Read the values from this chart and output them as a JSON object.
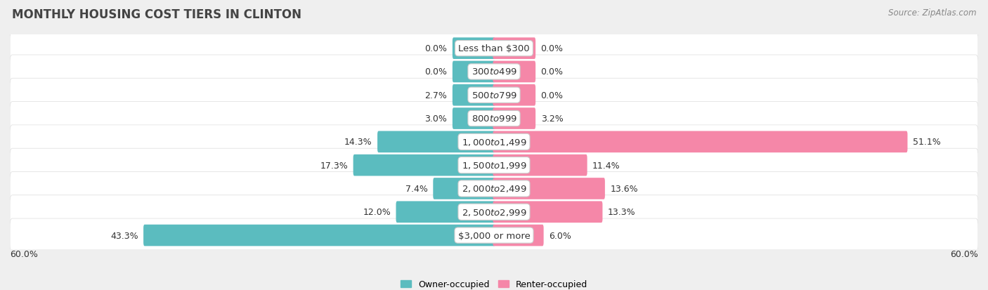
{
  "title": "MONTHLY HOUSING COST TIERS IN CLINTON",
  "source": "Source: ZipAtlas.com",
  "categories": [
    "Less than $300",
    "$300 to $499",
    "$500 to $799",
    "$800 to $999",
    "$1,000 to $1,499",
    "$1,500 to $1,999",
    "$2,000 to $2,499",
    "$2,500 to $2,999",
    "$3,000 or more"
  ],
  "owner_values": [
    0.0,
    0.0,
    2.7,
    3.0,
    14.3,
    17.3,
    7.4,
    12.0,
    43.3
  ],
  "renter_values": [
    0.0,
    0.0,
    0.0,
    3.2,
    51.1,
    11.4,
    13.6,
    13.3,
    6.0
  ],
  "owner_color": "#5bbcbf",
  "renter_color": "#f587a8",
  "background_color": "#efefef",
  "axis_limit": 60.0,
  "min_bar_width": 5.0,
  "legend_owner": "Owner-occupied",
  "legend_renter": "Renter-occupied",
  "title_fontsize": 12,
  "source_fontsize": 8.5,
  "label_fontsize": 9,
  "category_fontsize": 9.5
}
